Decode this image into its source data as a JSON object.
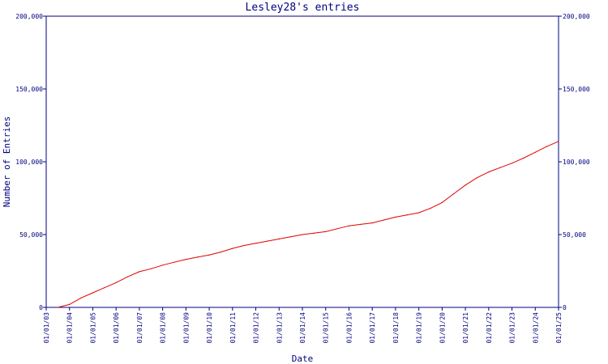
{
  "chart_data": {
    "type": "line",
    "title": "Lesley28's entries",
    "xlabel": "Date",
    "ylabel": "Number of Entries",
    "grid": false,
    "legend": "none",
    "y_ticks": [
      0,
      50000,
      100000,
      150000,
      200000
    ],
    "y_tick_labels": [
      "0",
      "50,000",
      "100,000",
      "150,000",
      "200,000"
    ],
    "ylim": [
      0,
      200000
    ],
    "x_tick_labels": [
      "01/01/03",
      "01/01/04",
      "01/01/05",
      "01/01/06",
      "01/01/07",
      "01/01/08",
      "01/01/09",
      "01/01/10",
      "01/01/11",
      "01/01/12",
      "01/01/13",
      "01/01/14",
      "01/01/15",
      "01/01/16",
      "01/01/17",
      "01/01/18",
      "01/01/19",
      "01/01/20",
      "01/01/21",
      "01/01/22",
      "01/01/23",
      "01/01/24",
      "01/01/25"
    ],
    "xlim": [
      "2003-01-01",
      "2025-01-01"
    ],
    "series_color": "#e00000",
    "axis_color": "#00007f",
    "series": [
      {
        "x": [
          "2003-07-01",
          "2004-01-01",
          "2004-07-01",
          "2005-01-01",
          "2005-07-01",
          "2006-01-01",
          "2006-07-01",
          "2007-01-01",
          "2007-07-01",
          "2008-01-01",
          "2008-07-01",
          "2009-01-01",
          "2009-07-01",
          "2010-01-01",
          "2010-07-01",
          "2011-01-01",
          "2011-07-01",
          "2012-01-01",
          "2012-07-01",
          "2013-01-01",
          "2013-07-01",
          "2014-01-01",
          "2014-07-01",
          "2015-01-01",
          "2015-07-01",
          "2016-01-01",
          "2016-07-01",
          "2017-01-01",
          "2017-07-01",
          "2018-01-01",
          "2018-07-01",
          "2019-01-01",
          "2019-07-01",
          "2020-01-01",
          "2020-07-01",
          "2021-01-01",
          "2021-07-01",
          "2022-01-01",
          "2022-07-01",
          "2023-01-01",
          "2023-07-01",
          "2024-01-01",
          "2024-07-01",
          "2025-01-01"
        ],
        "values": [
          0,
          2000,
          6500,
          10000,
          13500,
          17000,
          21000,
          24500,
          26500,
          29000,
          31000,
          33000,
          34500,
          36000,
          38000,
          40500,
          42500,
          44000,
          45500,
          47000,
          48500,
          50000,
          51000,
          52000,
          54000,
          56000,
          57000,
          58000,
          60000,
          62000,
          63500,
          65000,
          68000,
          72000,
          78000,
          84000,
          89000,
          93000,
          96000,
          99000,
          102500,
          106500,
          110500,
          114000
        ]
      }
    ]
  }
}
